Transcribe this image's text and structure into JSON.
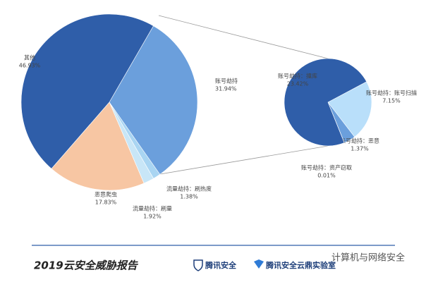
{
  "chart_data": [
    {
      "type": "pie",
      "categories": [
        "账号劫持",
        "流量劫持：刷热度",
        "流量劫持：刷量",
        "恶意爬虫",
        "其他"
      ],
      "values": [
        31.94,
        1.38,
        1.92,
        17.83,
        46.93
      ],
      "value_labels": [
        "31.94%",
        "1.38%",
        "1.92%",
        "17.83%",
        "46.93%"
      ],
      "colors": [
        "#6b9fdc",
        "#a9d5f2",
        "#c8e6f7",
        "#f7c6a3",
        "#2f5ea9"
      ]
    },
    {
      "type": "pie",
      "categories": [
        "账号劫持：账号扫描",
        "账号劫持：恶意",
        "账号劫持：资产窃取",
        "账号劫持：撞库"
      ],
      "values": [
        7.15,
        1.37,
        0.01,
        23.42
      ],
      "value_labels": [
        "7.15%",
        "1.37%",
        "0.01%",
        "23.42%"
      ],
      "colors": [
        "#b9dffa",
        "#6b9fdc",
        "#2f5ea9",
        "#2f5ea9"
      ]
    }
  ],
  "footer": {
    "title": "2019云安全威胁报告",
    "logo1": "腾讯安全",
    "logo2": "腾讯安全云鼎实验室",
    "watermark": "计算机与网络安全"
  }
}
